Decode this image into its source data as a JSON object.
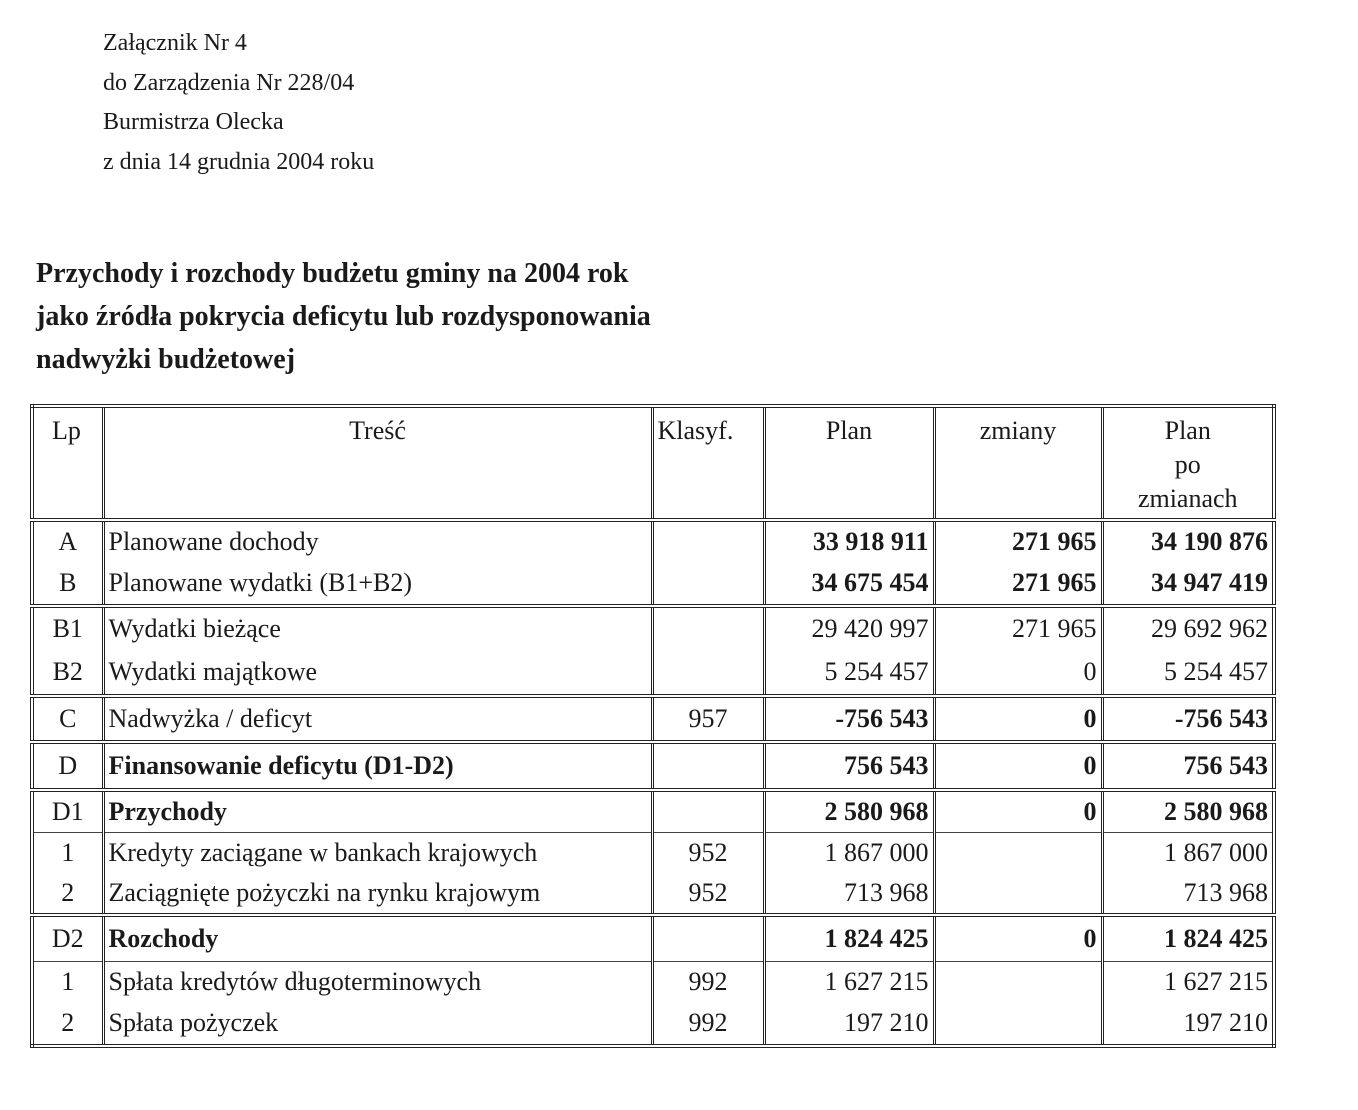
{
  "header_lines": [
    "Załącznik Nr 4",
    "do Zarządzenia Nr 228/04",
    "Burmistrza Olecka",
    "z dnia 14 grudnia 2004 roku"
  ],
  "title_lines": [
    "Przychody i rozchody budżetu gminy na 2004 rok",
    "jako źródła pokrycia deficytu lub rozdysponowania",
    "nadwyżki budżetowej"
  ],
  "table": {
    "columns": [
      "Lp",
      "Treść",
      "Klasyf.",
      "Plan",
      "zmiany",
      "Plan po zmianach"
    ],
    "column_last_lines": [
      "Plan",
      "po",
      "zmianach"
    ],
    "rows": [
      {
        "lp": "A",
        "tresc": "Planowane   dochody",
        "klasyf": "",
        "plan": "33 918 911",
        "zmiany": "271 965",
        "po": "34 190 876",
        "bold_nums": true,
        "bold_text": false
      },
      {
        "lp": "B",
        "tresc": "Planowane wydatki (B1+B2)",
        "klasyf": "",
        "plan": "34 675 454",
        "zmiany": "271 965",
        "po": "34 947 419",
        "bold_nums": true,
        "bold_text": false
      },
      {
        "lp": "B1",
        "tresc": "Wydatki bieżące",
        "klasyf": "",
        "plan": "29 420 997",
        "zmiany": "271 965",
        "po": "29 692 962",
        "bold_nums": false,
        "bold_text": false
      },
      {
        "lp": "B2",
        "tresc": "Wydatki majątkowe",
        "klasyf": "",
        "plan": "5 254 457",
        "zmiany": "0",
        "po": "5 254 457",
        "bold_nums": false,
        "bold_text": false
      },
      {
        "lp": "C",
        "tresc": "Nadwyżka / deficyt",
        "klasyf": "957",
        "plan": "-756 543",
        "zmiany": "0",
        "po": "-756 543",
        "bold_nums": true,
        "bold_text": false
      },
      {
        "lp": "D",
        "tresc": "Finansowanie deficytu (D1-D2)",
        "klasyf": "",
        "plan": "756 543",
        "zmiany": "0",
        "po": "756 543",
        "bold_nums": true,
        "bold_text": true
      },
      {
        "lp": "D1",
        "tresc": "Przychody",
        "klasyf": "",
        "plan": "2 580 968",
        "zmiany": "0",
        "po": "2 580 968",
        "bold_nums": true,
        "bold_text": true
      },
      {
        "lp": "1",
        "tresc": "Kredyty zaciągane w bankach krajowych",
        "klasyf": "952",
        "plan": "1 867 000",
        "zmiany": "",
        "po": "1 867 000",
        "bold_nums": false,
        "bold_text": false
      },
      {
        "lp": "2",
        "tresc": "Zaciągnięte pożyczki na rynku krajowym",
        "klasyf": "952",
        "plan": "713 968",
        "zmiany": "",
        "po": "713 968",
        "bold_nums": false,
        "bold_text": false
      },
      {
        "lp": "D2",
        "tresc": "Rozchody",
        "klasyf": "",
        "plan": "1 824 425",
        "zmiany": "0",
        "po": "1 824 425",
        "bold_nums": true,
        "bold_text": true
      },
      {
        "lp": "1",
        "tresc": "Spłata kredytów długoterminowych",
        "klasyf": "992",
        "plan": "1 627 215",
        "zmiany": "",
        "po": "1 627 215",
        "bold_nums": false,
        "bold_text": false
      },
      {
        "lp": "2",
        "tresc": "Spłata  pożyczek",
        "klasyf": "992",
        "plan": "197 210",
        "zmiany": "",
        "po": "197 210",
        "bold_nums": false,
        "bold_text": false
      }
    ]
  }
}
